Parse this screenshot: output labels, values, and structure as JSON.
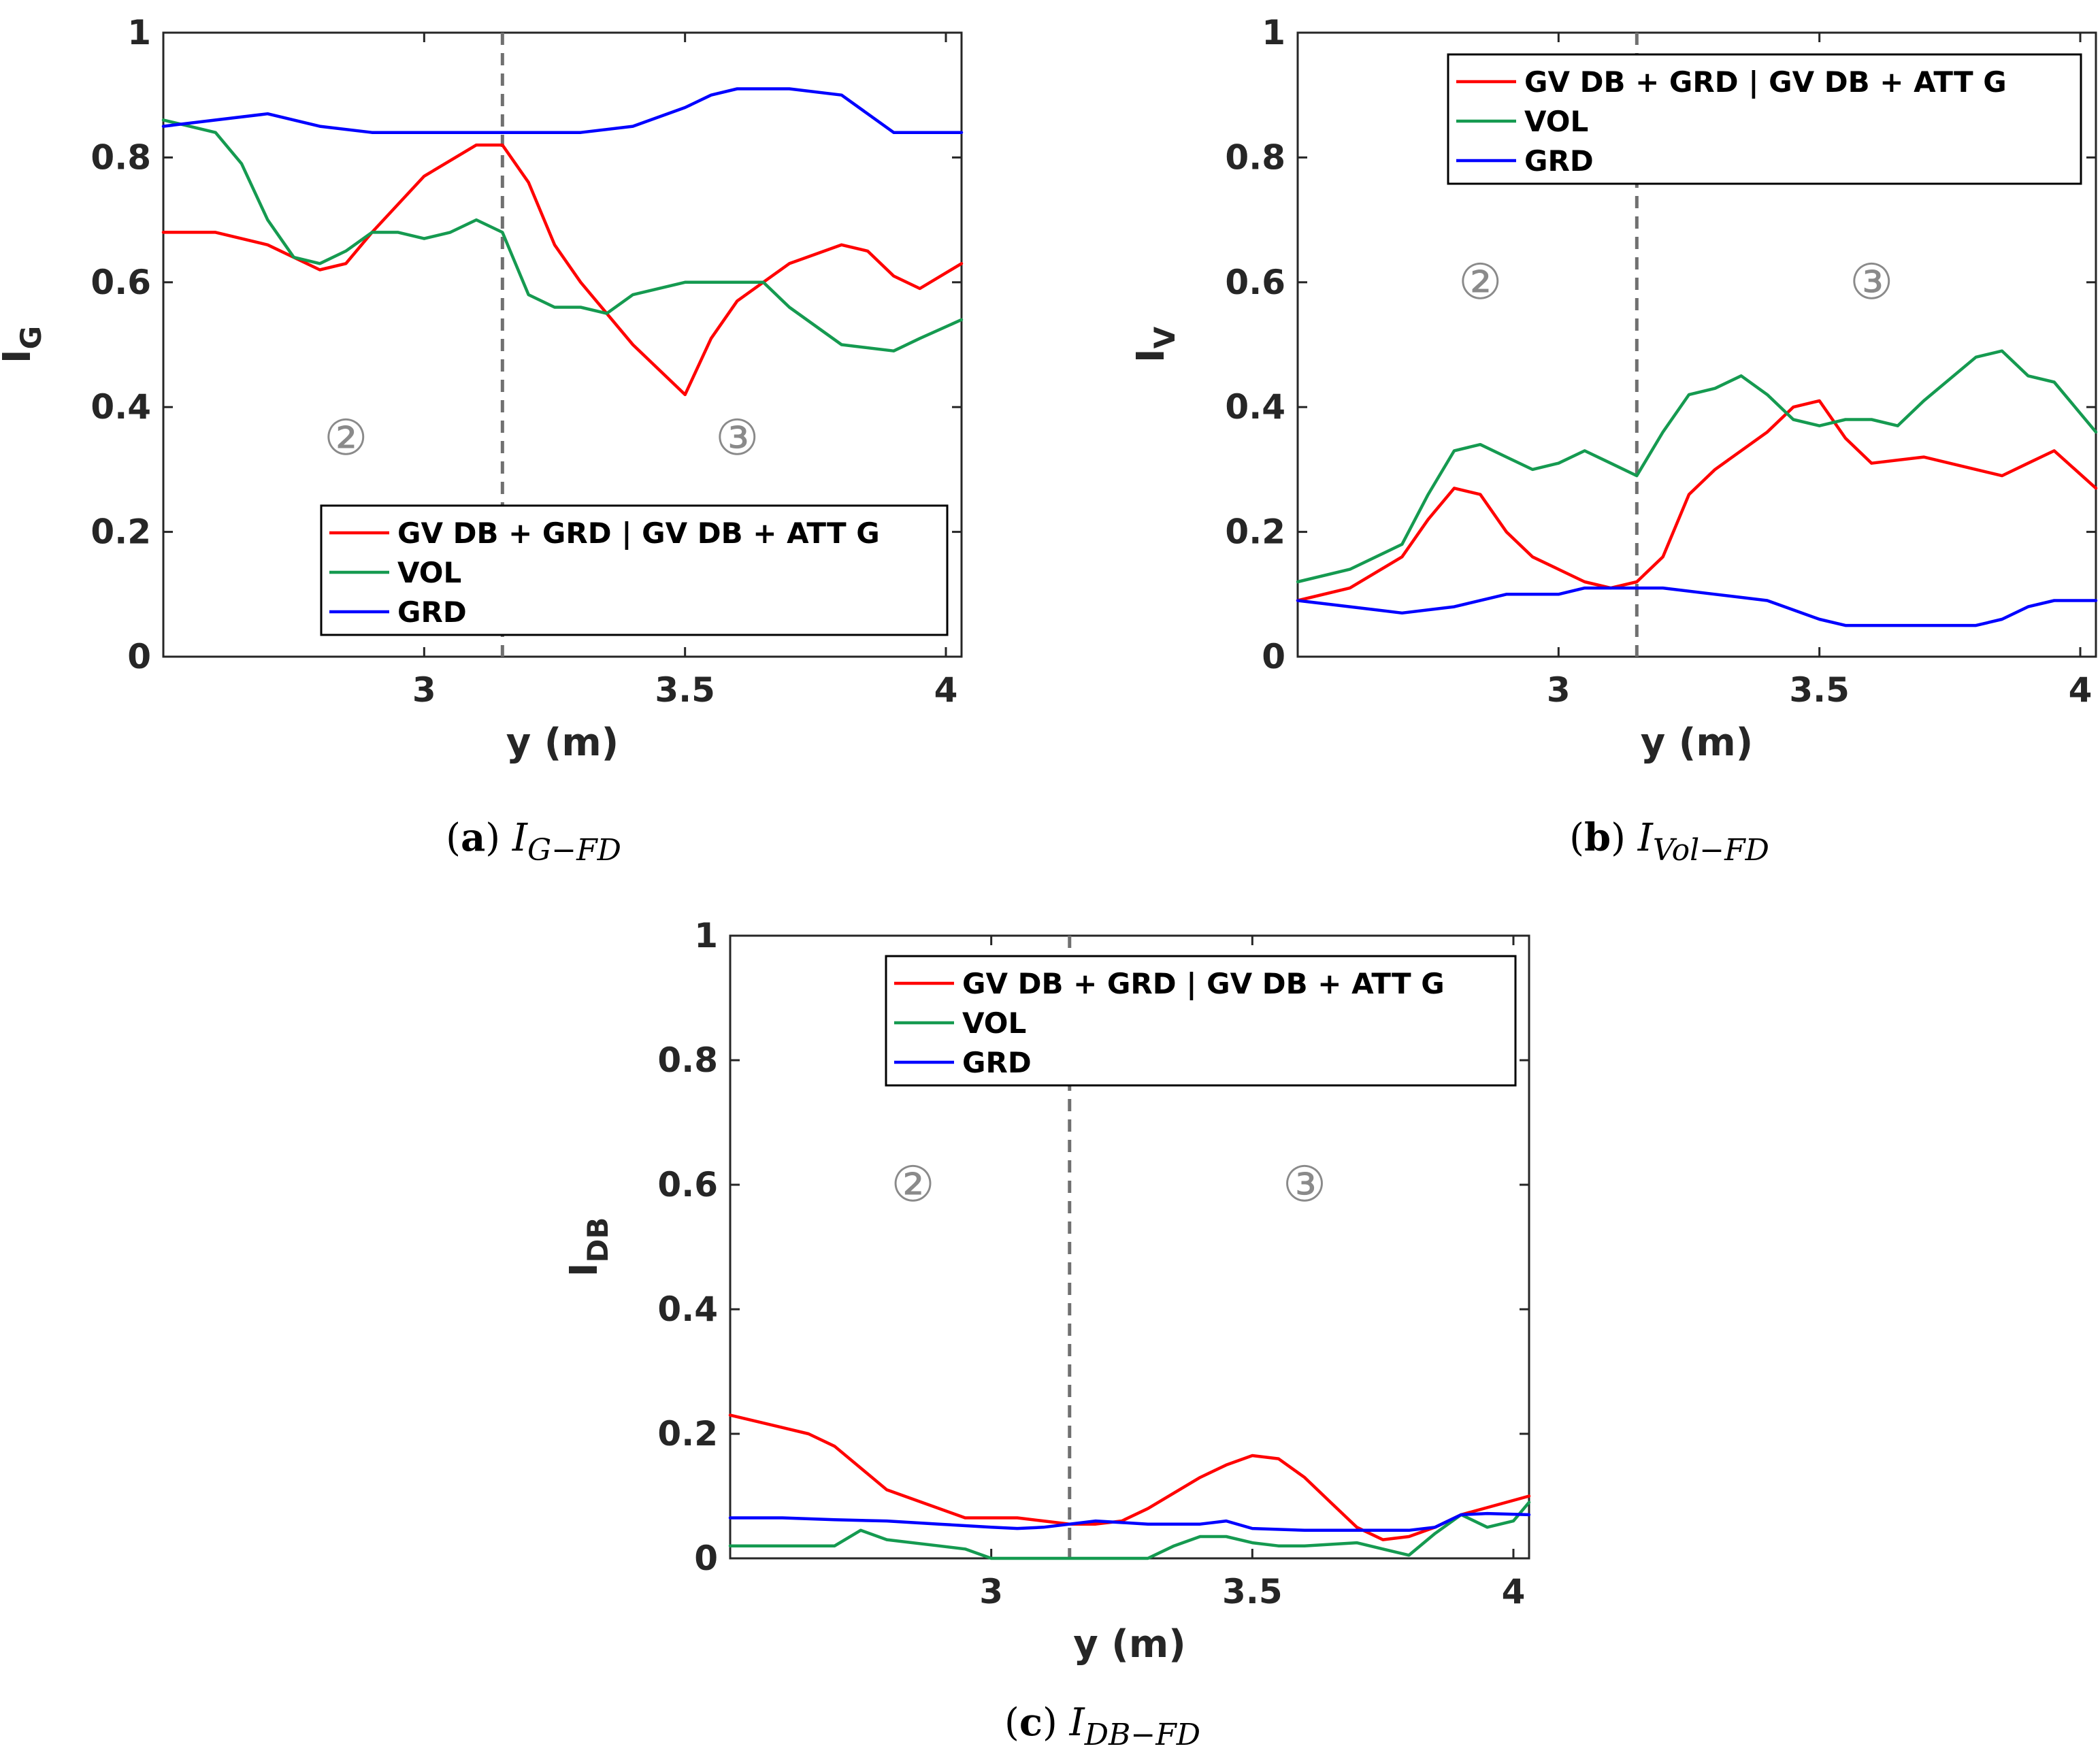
{
  "colors": {
    "red": "#ff0000",
    "green": "#159a50",
    "blue": "#0000ff",
    "divider": "#707070",
    "axis": "#262626"
  },
  "chart_data": [
    {
      "id": "a",
      "type": "line",
      "caption_letter": "a",
      "caption_main": "I",
      "caption_sub": "G−FD",
      "ylabel_main": "I",
      "ylabel_sub": "G",
      "xlabel": "y (m)",
      "xlim": [
        2.5,
        4.03
      ],
      "ylim": [
        0,
        1
      ],
      "xticks": [
        3,
        3.5,
        4
      ],
      "xtick_labels": [
        "3",
        "3.5",
        "4"
      ],
      "yticks": [
        0,
        0.2,
        0.4,
        0.6,
        0.8,
        1
      ],
      "ytick_labels": [
        "0",
        "0.2",
        "0.4",
        "0.6",
        "0.8",
        "1"
      ],
      "divider_x": 3.15,
      "regions": [
        {
          "label": "②",
          "x": 2.85,
          "y": 0.35
        },
        {
          "label": "③",
          "x": 3.6,
          "y": 0.35
        }
      ],
      "legend": {
        "placement": "bottom-right",
        "entries": [
          {
            "label": "GV DB + GRD | GV DB + ATT G",
            "color": "#ff0000"
          },
          {
            "label": "VOL",
            "color": "#159a50"
          },
          {
            "label": "GRD",
            "color": "#0000ff"
          }
        ]
      },
      "series": [
        {
          "name": "GV DB + GRD | GV DB + ATT G",
          "color": "#ff0000",
          "x": [
            2.5,
            2.6,
            2.7,
            2.8,
            2.85,
            2.9,
            3.0,
            3.1,
            3.15,
            3.2,
            3.25,
            3.3,
            3.4,
            3.5,
            3.55,
            3.6,
            3.7,
            3.8,
            3.85,
            3.9,
            3.95,
            4.03
          ],
          "y": [
            0.68,
            0.68,
            0.66,
            0.62,
            0.63,
            0.68,
            0.77,
            0.82,
            0.82,
            0.76,
            0.66,
            0.6,
            0.5,
            0.42,
            0.51,
            0.57,
            0.63,
            0.66,
            0.65,
            0.61,
            0.59,
            0.63
          ]
        },
        {
          "name": "VOL",
          "color": "#159a50",
          "x": [
            2.5,
            2.6,
            2.65,
            2.7,
            2.75,
            2.8,
            2.85,
            2.9,
            2.95,
            3.0,
            3.05,
            3.1,
            3.15,
            3.2,
            3.25,
            3.3,
            3.35,
            3.4,
            3.5,
            3.6,
            3.65,
            3.7,
            3.8,
            3.9,
            3.95,
            4.03
          ],
          "y": [
            0.86,
            0.84,
            0.79,
            0.7,
            0.64,
            0.63,
            0.65,
            0.68,
            0.68,
            0.67,
            0.68,
            0.7,
            0.68,
            0.58,
            0.56,
            0.56,
            0.55,
            0.58,
            0.6,
            0.6,
            0.6,
            0.56,
            0.5,
            0.49,
            0.51,
            0.54
          ]
        },
        {
          "name": "GRD",
          "color": "#0000ff",
          "x": [
            2.5,
            2.6,
            2.7,
            2.8,
            2.9,
            3.0,
            3.1,
            3.2,
            3.3,
            3.4,
            3.5,
            3.55,
            3.6,
            3.7,
            3.8,
            3.85,
            3.9,
            4.03
          ],
          "y": [
            0.85,
            0.86,
            0.87,
            0.85,
            0.84,
            0.84,
            0.84,
            0.84,
            0.84,
            0.85,
            0.88,
            0.9,
            0.91,
            0.91,
            0.9,
            0.87,
            0.84,
            0.84
          ]
        }
      ]
    },
    {
      "id": "b",
      "type": "line",
      "caption_letter": "b",
      "caption_main": "I",
      "caption_sub": "Vol−FD",
      "ylabel_main": "I",
      "ylabel_sub": "V",
      "xlabel": "y (m)",
      "xlim": [
        2.5,
        4.03
      ],
      "ylim": [
        0,
        1
      ],
      "xticks": [
        3,
        3.5,
        4
      ],
      "xtick_labels": [
        "3",
        "3.5",
        "4"
      ],
      "yticks": [
        0,
        0.2,
        0.4,
        0.6,
        0.8,
        1
      ],
      "ytick_labels": [
        "0",
        "0.2",
        "0.4",
        "0.6",
        "0.8",
        "1"
      ],
      "divider_x": 3.15,
      "regions": [
        {
          "label": "②",
          "x": 2.85,
          "y": 0.6
        },
        {
          "label": "③",
          "x": 3.6,
          "y": 0.6
        }
      ],
      "legend": {
        "placement": "top-right",
        "entries": [
          {
            "label": "GV DB + GRD | GV DB + ATT G",
            "color": "#ff0000"
          },
          {
            "label": "VOL",
            "color": "#159a50"
          },
          {
            "label": "GRD",
            "color": "#0000ff"
          }
        ]
      },
      "series": [
        {
          "name": "GV DB + GRD | GV DB + ATT G",
          "color": "#ff0000",
          "x": [
            2.5,
            2.6,
            2.7,
            2.75,
            2.8,
            2.85,
            2.9,
            2.95,
            3.0,
            3.05,
            3.1,
            3.15,
            3.2,
            3.25,
            3.3,
            3.4,
            3.45,
            3.5,
            3.55,
            3.6,
            3.7,
            3.8,
            3.85,
            3.9,
            3.95,
            4.03
          ],
          "y": [
            0.09,
            0.11,
            0.16,
            0.22,
            0.27,
            0.26,
            0.2,
            0.16,
            0.14,
            0.12,
            0.11,
            0.12,
            0.16,
            0.26,
            0.3,
            0.36,
            0.4,
            0.41,
            0.35,
            0.31,
            0.32,
            0.3,
            0.29,
            0.31,
            0.33,
            0.27
          ]
        },
        {
          "name": "VOL",
          "color": "#159a50",
          "x": [
            2.5,
            2.6,
            2.7,
            2.75,
            2.8,
            2.85,
            2.9,
            2.95,
            3.0,
            3.05,
            3.1,
            3.15,
            3.2,
            3.25,
            3.3,
            3.35,
            3.4,
            3.45,
            3.5,
            3.55,
            3.6,
            3.65,
            3.7,
            3.8,
            3.85,
            3.9,
            3.95,
            4.03
          ],
          "y": [
            0.12,
            0.14,
            0.18,
            0.26,
            0.33,
            0.34,
            0.32,
            0.3,
            0.31,
            0.33,
            0.31,
            0.29,
            0.36,
            0.42,
            0.43,
            0.45,
            0.42,
            0.38,
            0.37,
            0.38,
            0.38,
            0.37,
            0.41,
            0.48,
            0.49,
            0.45,
            0.44,
            0.36
          ]
        },
        {
          "name": "GRD",
          "color": "#0000ff",
          "x": [
            2.5,
            2.6,
            2.7,
            2.8,
            2.9,
            3.0,
            3.05,
            3.1,
            3.2,
            3.3,
            3.4,
            3.5,
            3.55,
            3.6,
            3.7,
            3.8,
            3.85,
            3.9,
            3.95,
            4.03
          ],
          "y": [
            0.09,
            0.08,
            0.07,
            0.08,
            0.1,
            0.1,
            0.11,
            0.11,
            0.11,
            0.1,
            0.09,
            0.06,
            0.05,
            0.05,
            0.05,
            0.05,
            0.06,
            0.08,
            0.09,
            0.09
          ]
        }
      ]
    },
    {
      "id": "c",
      "type": "line",
      "caption_letter": "c",
      "caption_main": "I",
      "caption_sub": "DB−FD",
      "ylabel_main": "I",
      "ylabel_sub": "DB",
      "xlabel": "y (m)",
      "xlim": [
        2.5,
        4.03
      ],
      "ylim": [
        0,
        1
      ],
      "xticks": [
        3,
        3.5,
        4
      ],
      "xtick_labels": [
        "3",
        "3.5",
        "4"
      ],
      "yticks": [
        0,
        0.2,
        0.4,
        0.6,
        0.8,
        1
      ],
      "ytick_labels": [
        "0",
        "0.2",
        "0.4",
        "0.6",
        "0.8",
        "1"
      ],
      "divider_x": 3.15,
      "regions": [
        {
          "label": "②",
          "x": 2.85,
          "y": 0.6
        },
        {
          "label": "③",
          "x": 3.6,
          "y": 0.6
        }
      ],
      "legend": {
        "placement": "top-right",
        "entries": [
          {
            "label": "GV DB + GRD | GV DB + ATT G",
            "color": "#ff0000"
          },
          {
            "label": "VOL",
            "color": "#159a50"
          },
          {
            "label": "GRD",
            "color": "#0000ff"
          }
        ]
      },
      "series": [
        {
          "name": "GV DB + GRD | GV DB + ATT G",
          "color": "#ff0000",
          "x": [
            2.5,
            2.55,
            2.6,
            2.65,
            2.7,
            2.8,
            2.9,
            2.95,
            3.0,
            3.05,
            3.1,
            3.15,
            3.2,
            3.25,
            3.3,
            3.4,
            3.45,
            3.5,
            3.55,
            3.6,
            3.65,
            3.7,
            3.75,
            3.8,
            3.85,
            3.9,
            4.03
          ],
          "y": [
            0.23,
            0.22,
            0.21,
            0.2,
            0.18,
            0.11,
            0.08,
            0.065,
            0.065,
            0.065,
            0.06,
            0.055,
            0.055,
            0.06,
            0.08,
            0.13,
            0.15,
            0.165,
            0.16,
            0.13,
            0.09,
            0.05,
            0.03,
            0.035,
            0.05,
            0.07,
            0.1
          ]
        },
        {
          "name": "VOL",
          "color": "#159a50",
          "x": [
            2.5,
            2.6,
            2.7,
            2.75,
            2.8,
            2.9,
            2.95,
            3.0,
            3.05,
            3.1,
            3.2,
            3.3,
            3.35,
            3.4,
            3.45,
            3.5,
            3.55,
            3.6,
            3.7,
            3.75,
            3.8,
            3.85,
            3.9,
            3.95,
            4.0,
            4.03
          ],
          "y": [
            0.02,
            0.02,
            0.02,
            0.045,
            0.03,
            0.02,
            0.015,
            0.0,
            0.0,
            0.0,
            0.0,
            0.0,
            0.02,
            0.035,
            0.035,
            0.025,
            0.02,
            0.02,
            0.025,
            0.015,
            0.005,
            0.04,
            0.07,
            0.05,
            0.06,
            0.09
          ]
        },
        {
          "name": "GRD",
          "color": "#0000ff",
          "x": [
            2.5,
            2.6,
            2.7,
            2.8,
            2.9,
            3.0,
            3.05,
            3.1,
            3.2,
            3.3,
            3.4,
            3.45,
            3.5,
            3.6,
            3.7,
            3.8,
            3.85,
            3.9,
            3.95,
            4.03
          ],
          "y": [
            0.065,
            0.065,
            0.062,
            0.06,
            0.055,
            0.05,
            0.048,
            0.05,
            0.06,
            0.055,
            0.055,
            0.06,
            0.048,
            0.045,
            0.045,
            0.045,
            0.05,
            0.07,
            0.072,
            0.07
          ]
        }
      ]
    }
  ]
}
